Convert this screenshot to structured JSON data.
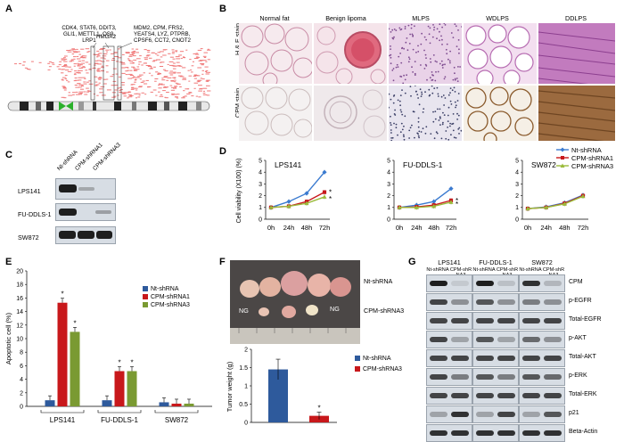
{
  "panels": {
    "A": {
      "label": "A",
      "gene_groups": [
        [
          "CDK4, STAT6, DDIT3,",
          "GLI1, METTL1, OS9,",
          "LRP1"
        ],
        [
          "HMGA2"
        ],
        [
          "MDM2, CPM, FRS2,",
          "YEATS4, LYZ, PTPRB,",
          "CPSF6, CCT2, CNOT2"
        ]
      ]
    },
    "B": {
      "label": "B",
      "columns": [
        "Normal fat",
        "Benign lipoma",
        "MLPS",
        "WDLPS",
        "DDLPS"
      ],
      "rows": [
        "H & E stain",
        "CPM stain"
      ]
    },
    "C": {
      "label": "C",
      "lanes": [
        "Nt-shRNA",
        "CPM-shRNA1",
        "CPM-shRNA3"
      ],
      "cell_lines": [
        "LPS141",
        "FU-DDLS-1",
        "SW872"
      ]
    },
    "D": {
      "label": "D",
      "ylabel": "Cell viability (X100) (%)",
      "xticks": [
        "0h",
        "24h",
        "48h",
        "72h"
      ],
      "yticks": [
        "0",
        "1",
        "2",
        "3",
        "4",
        "5"
      ],
      "legend": [
        "Nt-shRNA",
        "CPM-shRNA1",
        "CPM-shRNA3"
      ],
      "star": "*"
    },
    "E": {
      "label": "E",
      "ylabel": "Apoptotic cell (%)",
      "yticks": [
        "0",
        "2",
        "4",
        "6",
        "8",
        "10",
        "12",
        "14",
        "16",
        "18",
        "20"
      ],
      "groups": [
        "LPS141",
        "FU-DDLS-1",
        "SW872"
      ],
      "legend": [
        "Nt-shRNA",
        "CPM-shRNA1",
        "CPM-shRNA3"
      ],
      "star": "*"
    },
    "F": {
      "label": "F",
      "photo_labels": {
        "top": "Nt-shRNA",
        "bottom": "CPM-shRNA3",
        "ng": "NG"
      },
      "ylabel": "Tumor weight (g)",
      "yticks": [
        "0",
        "0.5",
        "1",
        "1.5",
        "2"
      ],
      "legend": [
        "Nt-shRNA",
        "CPM-shRNA3"
      ],
      "star": "*"
    },
    "G": {
      "label": "G",
      "cell_lines": [
        "LPS141",
        "FU-DDLS-1",
        "SW872"
      ],
      "lanes": [
        "Nt-shRNA",
        "CPM-shRNA3",
        "Nt-shRNA",
        "CPM-shRNA3",
        "Nt-shRNA",
        "CPM-shRNA3"
      ],
      "proteins": [
        "CPM",
        "p-EGFR",
        "Total-EGFR",
        "p-AKT",
        "Total-AKT",
        "p-ERK",
        "Total-ERK",
        "p21",
        "Beta-Actin"
      ]
    }
  },
  "colors": {
    "nt": "#2e5a9c",
    "sh1": "#c8181b",
    "sh3": "#7a9a32",
    "nt_line": "#3b7bd0",
    "sh3_line": "#9bbb3b"
  },
  "chart_data": [
    {
      "type": "line",
      "title": "LPS141",
      "x": [
        "0h",
        "24h",
        "48h",
        "72h"
      ],
      "ylabel": "Cell viability (X100) (%)",
      "ylim": [
        0,
        5
      ],
      "series": [
        {
          "name": "Nt-shRNA",
          "values": [
            1.0,
            1.5,
            2.2,
            4.0
          ]
        },
        {
          "name": "CPM-shRNA1",
          "values": [
            1.0,
            1.1,
            1.5,
            2.3
          ]
        },
        {
          "name": "CPM-shRNA3",
          "values": [
            1.0,
            1.1,
            1.35,
            1.9
          ]
        }
      ]
    },
    {
      "type": "line",
      "title": "FU-DDLS-1",
      "x": [
        "0h",
        "24h",
        "48h",
        "72h"
      ],
      "ylim": [
        0,
        5
      ],
      "series": [
        {
          "name": "Nt-shRNA",
          "values": [
            1.0,
            1.2,
            1.5,
            2.6
          ]
        },
        {
          "name": "CPM-shRNA1",
          "values": [
            1.0,
            1.05,
            1.2,
            1.6
          ]
        },
        {
          "name": "CPM-shRNA3",
          "values": [
            1.0,
            1.0,
            1.1,
            1.45
          ]
        }
      ]
    },
    {
      "type": "line",
      "title": "SW872",
      "x": [
        "0h",
        "24h",
        "48h",
        "72h"
      ],
      "ylim": [
        0,
        5
      ],
      "series": [
        {
          "name": "Nt-shRNA",
          "values": [
            0.9,
            1.05,
            1.4,
            2.05
          ]
        },
        {
          "name": "CPM-shRNA1",
          "values": [
            0.9,
            1.0,
            1.35,
            2.0
          ]
        },
        {
          "name": "CPM-shRNA3",
          "values": [
            0.9,
            1.0,
            1.3,
            1.95
          ]
        }
      ]
    },
    {
      "type": "bar",
      "categories": [
        "LPS141",
        "FU-DDLS-1",
        "SW872"
      ],
      "ylabel": "Apoptotic cell (%)",
      "ylim": [
        0,
        20
      ],
      "series": [
        {
          "name": "Nt-shRNA",
          "values": [
            0.9,
            0.9,
            0.6
          ]
        },
        {
          "name": "CPM-shRNA1",
          "values": [
            15.3,
            5.2,
            0.4
          ]
        },
        {
          "name": "CPM-shRNA3",
          "values": [
            11.0,
            5.2,
            0.4
          ]
        }
      ]
    },
    {
      "type": "bar",
      "categories": [
        "Nt-shRNA",
        "CPM-shRNA3"
      ],
      "ylabel": "Tumor weight (g)",
      "ylim": [
        0,
        2
      ],
      "values": [
        1.45,
        0.18
      ]
    }
  ]
}
